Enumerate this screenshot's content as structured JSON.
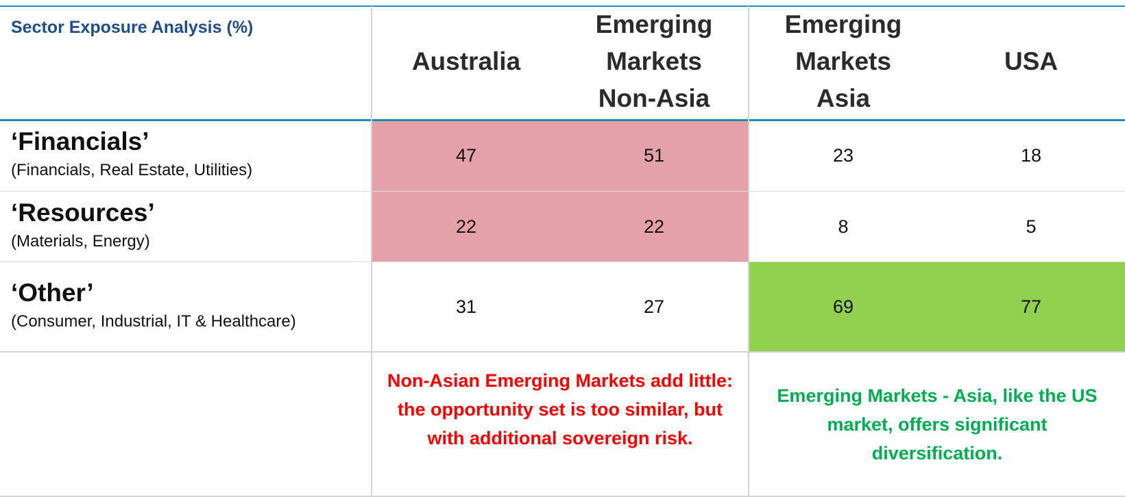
{
  "chart_data": {
    "type": "table",
    "title": "Sector Exposure Analysis",
    "unit": "(%)",
    "columns": [
      {
        "lines": [
          "Australia"
        ]
      },
      {
        "lines": [
          "Emerging",
          "Markets",
          "Non-Asia"
        ]
      },
      {
        "lines": [
          "Emerging",
          "Markets",
          "Asia"
        ]
      },
      {
        "lines": [
          "USA"
        ]
      }
    ],
    "rows": [
      {
        "name": "‘Financials’",
        "sub": "(Financials,  Real Estate,  Utilities)",
        "values": [
          "47",
          "51",
          "23",
          "18"
        ]
      },
      {
        "name": "‘Resources’",
        "sub": "(Materials,  Energy)",
        "values": [
          "22",
          "22",
          "8",
          "5"
        ]
      },
      {
        "name": "‘Other’",
        "sub": "(Consumer,  Industrial,  IT & Healthcare)",
        "values": [
          "31",
          "27",
          "69",
          "77"
        ]
      }
    ],
    "highlights": [
      {
        "rows": [
          0,
          1
        ],
        "cols": [
          0,
          1
        ],
        "color": "#e4a1a7"
      },
      {
        "rows": [
          2
        ],
        "cols": [
          2,
          3
        ],
        "color": "#92d050"
      }
    ],
    "annotations": [
      {
        "text": "Non-Asian Emerging Markets add little: the opportunity set is too similar, but with additional sovereign risk.",
        "color": "#ff0000"
      },
      {
        "text": "Emerging Markets - Asia, like the US market, offers significant diversification.",
        "color": "#00b050"
      }
    ]
  },
  "colors": {
    "title": "#1f4e8c",
    "rule": "#1e8fb4",
    "grid": "#d4d4d4"
  }
}
